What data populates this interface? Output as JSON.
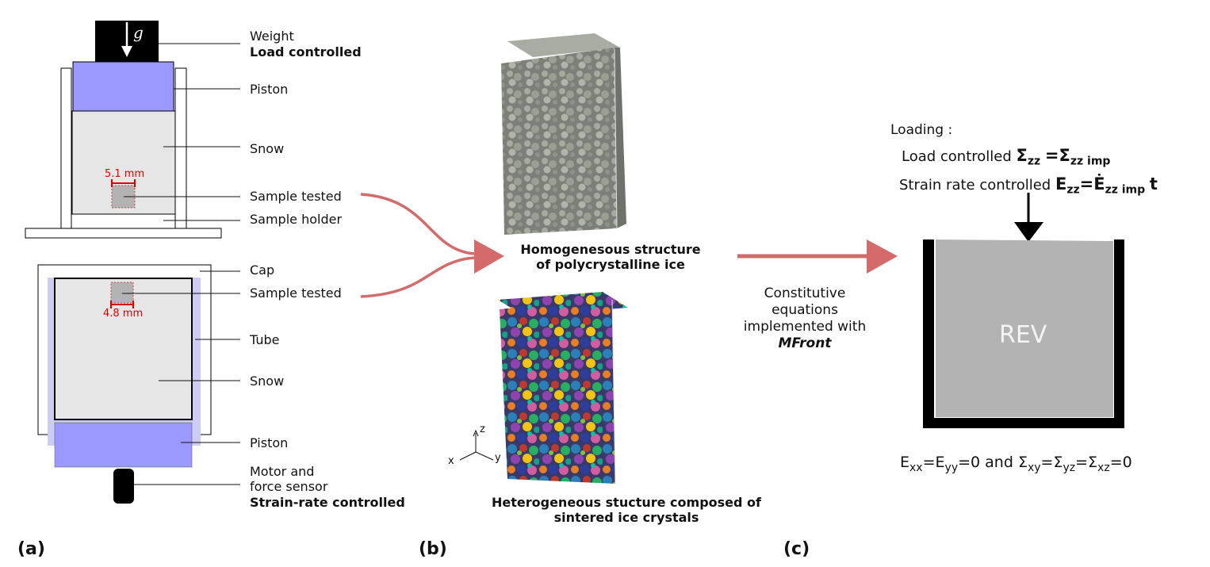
{
  "panel_a": {
    "weight": "Weight",
    "load_controlled": "Load controlled",
    "g_symbol": "g",
    "piston_top": "Piston",
    "snow_top": "Snow",
    "size_top": "5.1 mm",
    "sample_tested_top": "Sample tested",
    "sample_holder": "Sample holder",
    "cap": "Cap",
    "sample_tested_bottom": "Sample tested",
    "size_bottom": "4.8 mm",
    "tube": "Tube",
    "snow_bottom": "Snow",
    "piston_bottom": "Piston",
    "motor_line1": "Motor and",
    "motor_line2": "force sensor",
    "strain_rate_controlled": "Strain-rate controlled"
  },
  "panel_b": {
    "homog_line1": "Homogenesous structure",
    "homog_line2": "of polycrystalline ice",
    "hetero_line1": "Heterogeneous stucture composed of",
    "hetero_line2": "sintered ice crystals",
    "axis_z": "z",
    "axis_x": "x",
    "axis_y": "y",
    "constitutive_line1": "Constitutive",
    "constitutive_line2": "equations",
    "constitutive_line3": "implemented with",
    "constitutive_line4": "MFront"
  },
  "panel_c": {
    "loading_title": "Loading :",
    "load_controlled": "Load controlled",
    "load_eq_lhs": "Σ",
    "load_eq_lhs_sub": "zz",
    "load_eq_rhs": "=Σ",
    "load_eq_rhs_sub": "zz imp",
    "strain_controlled": "Strain rate controlled",
    "strain_eq_lhs": "E",
    "strain_eq_lhs_sub": "zz",
    "strain_eq_rhs": "=Ė",
    "strain_eq_rhs_sub": "zz imp",
    "strain_eq_t": "t",
    "rev": "REV",
    "bc_E": "E",
    "bc_xx": "xx",
    "bc_eq1": "=E",
    "bc_yy": "yy",
    "bc_and": "=0 and Σ",
    "bc_xy": "xy",
    "bc_eq2": "=Σ",
    "bc_yz": "yz",
    "bc_eq3": "=Σ",
    "bc_xz": "xz",
    "bc_zero": "=0"
  },
  "panel_labels": {
    "a": "(a)",
    "b": "(b)",
    "c": "(c)"
  },
  "colors": {
    "piston": "#9999ff",
    "tube": "#ccccf5",
    "snow": "#e6e6e6",
    "sample": "#b3b3b3",
    "arrow": "#d46a6a",
    "rev_fill": "#b3b3b3",
    "grain_gray": "#8a8d83"
  }
}
